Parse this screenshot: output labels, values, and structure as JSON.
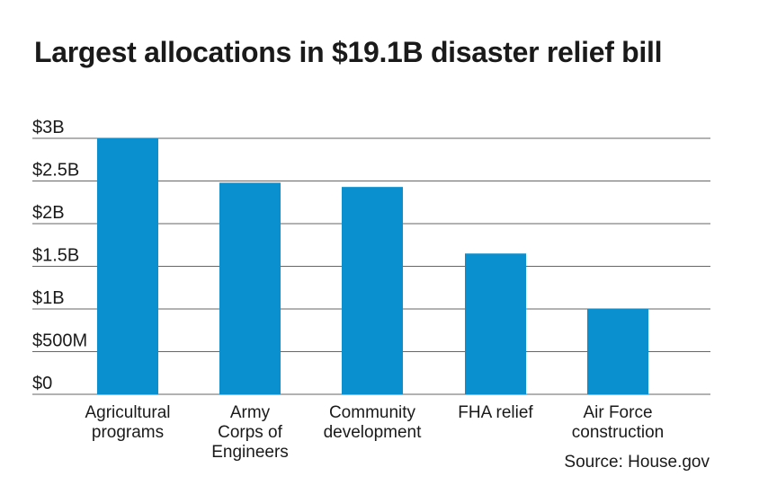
{
  "title": "Largest allocations in $19.1B disaster relief bill",
  "source": "Source: House.gov",
  "colors": {
    "bar": "#0a90ce",
    "grid": "#666666",
    "text": "#1a1a1a"
  },
  "chart_data": {
    "type": "bar",
    "categories": [
      [
        "Agricultural",
        "programs"
      ],
      [
        "Army",
        "Corps of",
        "Engineers"
      ],
      [
        "Community",
        "development"
      ],
      [
        "FHA relief"
      ],
      [
        "Air Force",
        "construction"
      ]
    ],
    "values": [
      3.0,
      2.48,
      2.43,
      1.65,
      1.0
    ],
    "ylim": [
      0,
      3
    ],
    "yticks": [
      0,
      0.5,
      1,
      1.5,
      2,
      2.5,
      3
    ],
    "ytick_labels": [
      "$0",
      "$500M",
      "$1B",
      "$1.5B",
      "$2B",
      "$2.5B",
      "$3B"
    ],
    "xlabel": "",
    "ylabel": "",
    "grid": true
  }
}
